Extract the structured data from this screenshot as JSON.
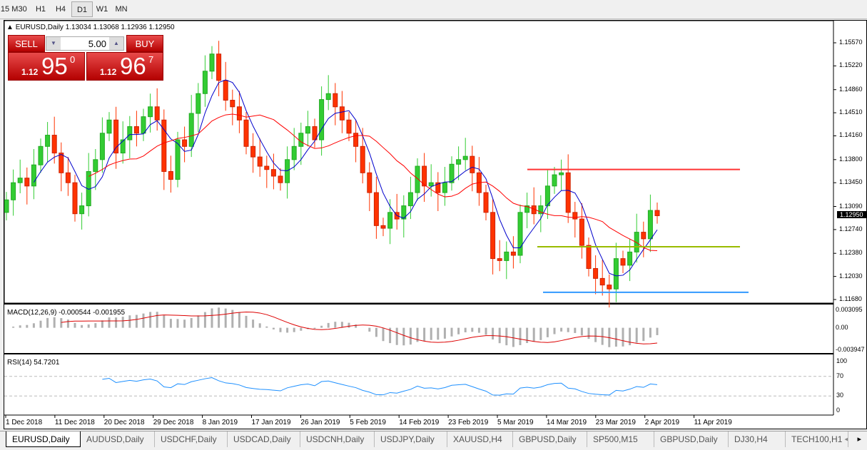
{
  "toolbar": {
    "timeframes": [
      "15",
      "M30",
      "H1",
      "H4",
      "D1",
      "W1",
      "MN"
    ],
    "selected": "D1"
  },
  "chart": {
    "symbol_line": "EURUSD,Daily  1.13034 1.13068 1.12936 1.12950",
    "trade": {
      "sell_label": "SELL",
      "buy_label": "BUY",
      "lot": "5.00",
      "sell_prefix": "1.12",
      "sell_big": "95",
      "sell_sup": "0",
      "buy_prefix": "1.12",
      "buy_big": "96",
      "buy_sup": "7"
    },
    "price_ticks": [
      "1.15570",
      "1.15220",
      "1.14860",
      "1.14510",
      "1.14160",
      "1.13800",
      "1.13450",
      "1.13090",
      "1.12740",
      "1.12380",
      "1.12030",
      "1.11680"
    ],
    "current_price": "1.12950",
    "macd": {
      "label": "MACD(12,26,9) -0.000544 -0.001955",
      "ticks": [
        "0.003095",
        "0.00",
        "-0.003947"
      ]
    },
    "rsi": {
      "label": "RSI(14) 54.7201",
      "ticks": [
        "100",
        "70",
        "30",
        "0"
      ]
    },
    "date_ticks": [
      "1 Dec 2018",
      "11 Dec 2018",
      "20 Dec 2018",
      "29 Dec 2018",
      "8 Jan 2019",
      "17 Jan 2019",
      "26 Jan 2019",
      "5 Feb 2019",
      "14 Feb 2019",
      "23 Feb 2019",
      "5 Mar 2019",
      "14 Mar 2019",
      "23 Mar 2019",
      "2 Apr 2019",
      "11 Apr 2019"
    ],
    "colors": {
      "bull": "#33cc33",
      "bear": "#ff3300",
      "ma_fast": "#0000cc",
      "ma_slow": "#ff0000",
      "macd_hist": "#b0b0b0",
      "macd_signal": "#dd0000",
      "rsi": "#1e90ff"
    },
    "levels": [
      {
        "price": 1.1365,
        "color": "#ff3333"
      },
      {
        "price": 1.1248,
        "color": "#99bb00"
      },
      {
        "price": 1.1179,
        "color": "#3399ff"
      }
    ]
  },
  "chart_data": {
    "type": "candlestick",
    "first_open": 1.13,
    "close": [
      1.1319,
      1.1345,
      1.1352,
      1.134,
      1.1372,
      1.14,
      1.1417,
      1.139,
      1.136,
      1.1345,
      1.1298,
      1.131,
      1.1362,
      1.138,
      1.142,
      1.144,
      1.139,
      1.141,
      1.143,
      1.142,
      1.1445,
      1.146,
      1.144,
      1.1362,
      1.135,
      1.141,
      1.14,
      1.145,
      1.148,
      1.1514,
      1.154,
      1.15,
      1.147,
      1.146,
      1.144,
      1.14,
      1.1384,
      1.137,
      1.1365,
      1.1355,
      1.1345,
      1.138,
      1.14,
      1.142,
      1.143,
      1.141,
      1.1471,
      1.148,
      1.146,
      1.144,
      1.142,
      1.14,
      1.136,
      1.133,
      1.128,
      1.1276,
      1.13,
      1.129,
      1.131,
      1.133,
      1.137,
      1.134,
      1.1345,
      1.133,
      1.1345,
      1.1373,
      1.138,
      1.1385,
      1.136,
      1.133,
      1.13,
      1.123,
      1.1227,
      1.124,
      1.1235,
      1.13,
      1.131,
      1.1298,
      1.131,
      1.134,
      1.1357,
      1.136,
      1.13,
      1.129,
      1.125,
      1.1215,
      1.12,
      1.119,
      1.1184,
      1.123,
      1.122,
      1.124,
      1.127,
      1.126,
      1.1303,
      1.1295
    ]
  },
  "tabs": [
    "EURUSD,Daily",
    "AUDUSD,Daily",
    "USDCHF,Daily",
    "USDCAD,Daily",
    "USDCNH,Daily",
    "USDJPY,Daily",
    "XAUUSD,H4",
    "GBPUSD,Daily",
    "SP500,M15",
    "GBPUSD,Daily",
    "DJ30,H4",
    "TECH100,H1"
  ],
  "tab_selected": 0
}
